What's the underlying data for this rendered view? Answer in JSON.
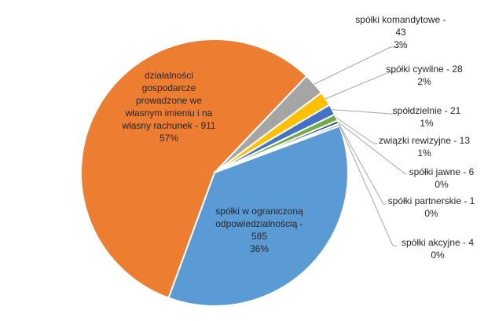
{
  "chart_data": {
    "type": "pie",
    "title": "",
    "slices": [
      {
        "name": "spółki w ograniczoną odpowiedzialnością",
        "value": 585,
        "percent": "36%",
        "color": "#5b9bd5",
        "label_lines": [
          "spółki w ograniczoną",
          "odpowiedzialnością -",
          "585",
          "36%"
        ]
      },
      {
        "name": "działalności gospodarcze prowadzone we własnym imieniu i na własny rachunek",
        "value": 911,
        "percent": "57%",
        "color": "#ed7d31",
        "label_lines": [
          "działalności",
          "gospodarcze",
          "prowadzone we",
          "własnym imieniu i na",
          "własny rachunek - 911",
          "57%"
        ]
      },
      {
        "name": "spółki komandytowe",
        "value": 43,
        "percent": "3%",
        "color": "#a5a5a5",
        "label_lines": [
          "spółki komandytowe -",
          "43",
          "3%"
        ]
      },
      {
        "name": "spółki cywilne",
        "value": 28,
        "percent": "2%",
        "color": "#ffc000",
        "label_lines": [
          "spółki cywilne - 28",
          "2%"
        ]
      },
      {
        "name": "spółdzielnie",
        "value": 21,
        "percent": "1%",
        "color": "#4472c4",
        "label_lines": [
          "spółdzielnie - 21",
          "1%"
        ]
      },
      {
        "name": "związki rewizyjne",
        "value": 13,
        "percent": "1%",
        "color": "#70ad47",
        "label_lines": [
          "związki rewizyjne - 13",
          "1%"
        ]
      },
      {
        "name": "spółki jawne",
        "value": 6,
        "percent": "0%",
        "color": "#264478",
        "label_lines": [
          "spółki jawne - 6",
          "0%"
        ]
      },
      {
        "name": "spółki partnerskie",
        "value": 1,
        "percent": "0%",
        "color": "#9e480e",
        "label_lines": [
          "spółki partnerskie - 1",
          "0%"
        ]
      },
      {
        "name": "spółki akcyjne",
        "value": 4,
        "percent": "0%",
        "color": "#636363",
        "label_lines": [
          "spółki akcyjne - 4",
          "0%"
        ]
      }
    ]
  }
}
